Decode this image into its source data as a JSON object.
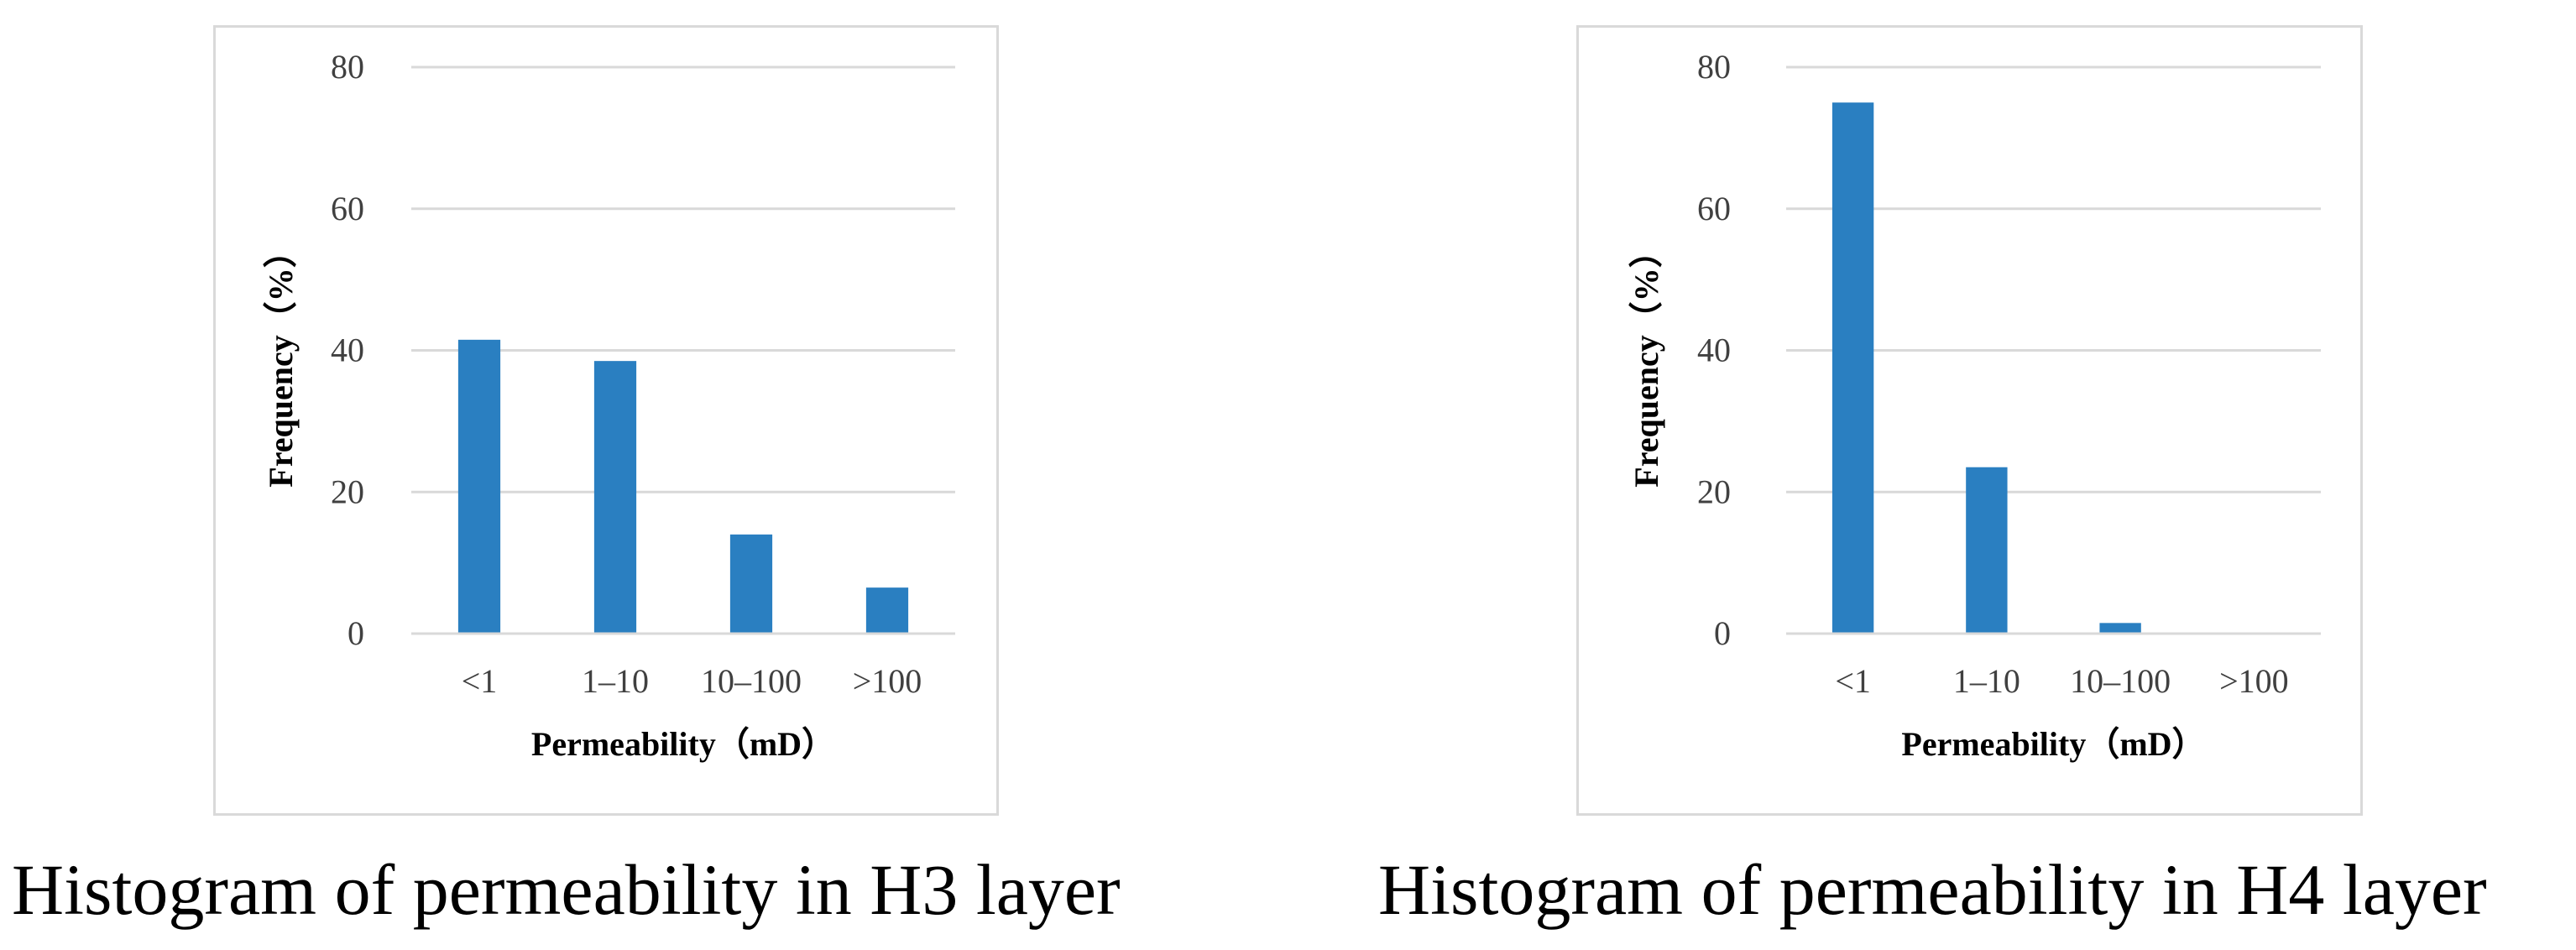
{
  "chart_data": [
    {
      "type": "bar",
      "title": "Histogram of permeability in H3 layer",
      "xlabel": "Permeability（mD）",
      "ylabel": "Frequency（%）",
      "categories": [
        "<1",
        "1–10",
        "10–100",
        ">100"
      ],
      "values": [
        41.5,
        38.5,
        14,
        6.5
      ],
      "ylim": [
        0,
        80
      ],
      "yticks": [
        "0",
        "20",
        "40",
        "60",
        "80"
      ],
      "grid": true,
      "bar_color": "#2a7fc1"
    },
    {
      "type": "bar",
      "title": "Histogram of permeability in H4 layer",
      "xlabel": "Permeability（mD）",
      "ylabel": "Frequency（%）",
      "categories": [
        "<1",
        "1–10",
        "10–100",
        ">100"
      ],
      "values": [
        75,
        23.5,
        1.5,
        0
      ],
      "ylim": [
        0,
        80
      ],
      "yticks": [
        "0",
        "20",
        "40",
        "60",
        "80"
      ],
      "grid": true,
      "bar_color": "#2a7fc1"
    }
  ]
}
